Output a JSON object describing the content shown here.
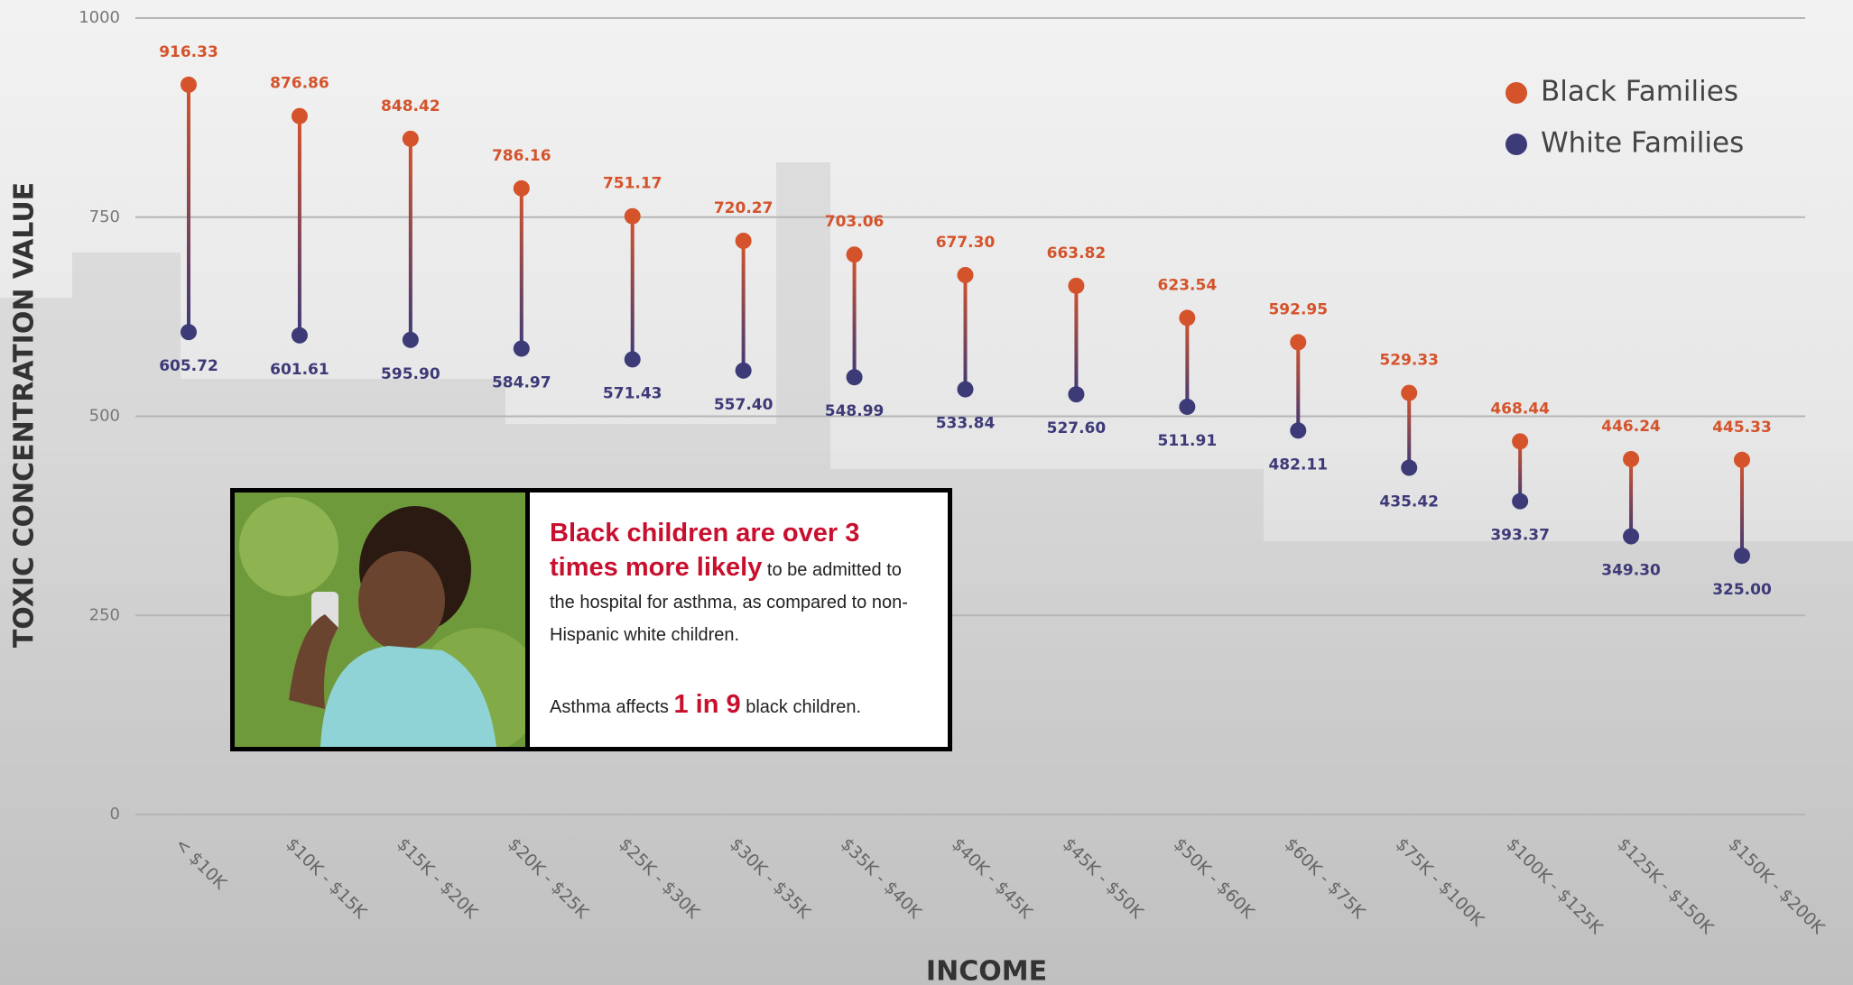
{
  "chart_data": {
    "type": "dumbbell",
    "y_label": "TOXIC CONCENTRATION VALUE",
    "x_label": "INCOME",
    "categories": [
      "< $10K",
      "$10K - $15K",
      "$15K - $20K",
      "$20K - $25K",
      "$25K - $30K",
      "$30K - $35K",
      "$35K - $40K",
      "$40K - $45K",
      "$45K - $50K",
      "$50K - $60K",
      "$60K - $75K",
      "$75K - $100K",
      "$100K - $125K",
      "$125K - $150K",
      "$150K - $200K"
    ],
    "series": [
      {
        "name": "Black Families",
        "color": "#d4532b",
        "values": [
          916.33,
          876.86,
          848.42,
          786.16,
          751.17,
          720.27,
          703.06,
          677.3,
          663.82,
          623.54,
          592.95,
          529.33,
          468.44,
          446.24,
          445.33
        ],
        "value_labels": [
          "916.33",
          "876.86",
          "848.42",
          "786.16",
          "751.17",
          "720.27",
          "703.06",
          "677.30",
          "663.82",
          "623.54",
          "592.95",
          "529.33",
          "468.44",
          "446.24",
          "445.33"
        ]
      },
      {
        "name": "White Families",
        "color": "#3d3a78",
        "values": [
          605.72,
          601.61,
          595.9,
          584.97,
          571.43,
          557.4,
          548.99,
          533.84,
          527.6,
          511.91,
          482.11,
          435.42,
          393.37,
          349.3,
          325
        ],
        "value_labels": [
          "605.72",
          "601.61",
          "595.90",
          "584.97",
          "571.43",
          "557.40",
          "548.99",
          "533.84",
          "527.60",
          "511.91",
          "482.11",
          "435.42",
          "393.37",
          "349.30",
          "325.00"
        ]
      }
    ],
    "ylim": [
      0,
      1000
    ],
    "yticks": [
      0,
      250,
      500,
      750,
      1000
    ],
    "grid": true,
    "legend": "upper right",
    "annotation": {
      "headline": "Black children are over 3 times more likely",
      "text": "to be admitted to the hospital for asthma, as compared to non-Hispanic white children.",
      "note_prefix": "Asthma affects",
      "note_highlight": "1 in 9",
      "note_suffix": "black children."
    }
  }
}
